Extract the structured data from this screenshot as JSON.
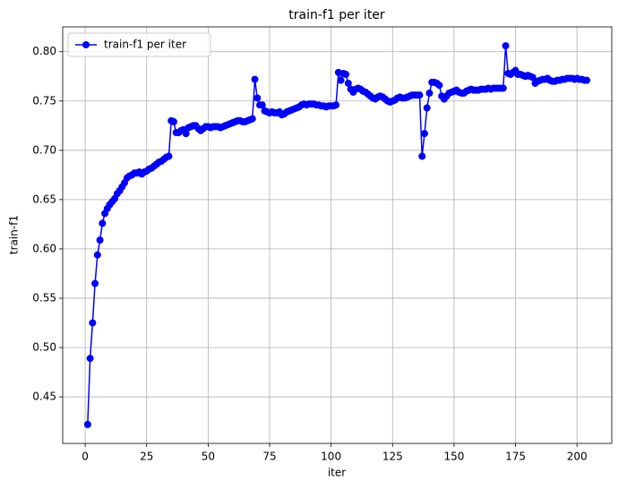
{
  "chart_data": {
    "type": "line",
    "title": "train-f1 per iter",
    "xlabel": "iter",
    "ylabel": "train-f1",
    "x": [
      1,
      2,
      3,
      4,
      5,
      6,
      7,
      8,
      9,
      10,
      11,
      12,
      13,
      14,
      15,
      16,
      17,
      18,
      19,
      20,
      21,
      22,
      23,
      24,
      25,
      26,
      27,
      28,
      29,
      30,
      31,
      32,
      33,
      34,
      35,
      36,
      37,
      38,
      39,
      40,
      41,
      42,
      43,
      44,
      45,
      46,
      47,
      48,
      49,
      50,
      51,
      52,
      53,
      54,
      55,
      56,
      57,
      58,
      59,
      60,
      61,
      62,
      63,
      64,
      65,
      66,
      67,
      68,
      69,
      70,
      71,
      72,
      73,
      74,
      75,
      76,
      77,
      78,
      79,
      80,
      81,
      82,
      83,
      84,
      85,
      86,
      87,
      88,
      89,
      90,
      91,
      92,
      93,
      94,
      95,
      96,
      97,
      98,
      99,
      100,
      101,
      102,
      103,
      104,
      105,
      106,
      107,
      108,
      109,
      110,
      111,
      112,
      113,
      114,
      115,
      116,
      117,
      118,
      119,
      120,
      121,
      122,
      123,
      124,
      125,
      126,
      127,
      128,
      129,
      130,
      131,
      132,
      133,
      134,
      135,
      136,
      137,
      138,
      139,
      140,
      141,
      142,
      143,
      144,
      145,
      146,
      147,
      148,
      149,
      150,
      151,
      152,
      153,
      154,
      155,
      156,
      157,
      158,
      159,
      160,
      161,
      162,
      163,
      164,
      165,
      166,
      167,
      168,
      169,
      170,
      171,
      172,
      173,
      174,
      175,
      176,
      177,
      178,
      179,
      180,
      181,
      182,
      183,
      184,
      185,
      186,
      187,
      188,
      189,
      190,
      191,
      192,
      193,
      194,
      195,
      196,
      197,
      198,
      199,
      200,
      201,
      202,
      203,
      204
    ],
    "series": [
      {
        "name": "train-f1 per iter",
        "color": "#0000ff",
        "values": [
          0.422,
          0.489,
          0.525,
          0.565,
          0.594,
          0.609,
          0.626,
          0.636,
          0.641,
          0.645,
          0.648,
          0.651,
          0.656,
          0.659,
          0.663,
          0.667,
          0.672,
          0.674,
          0.675,
          0.677,
          0.677,
          0.678,
          0.676,
          0.678,
          0.679,
          0.681,
          0.682,
          0.684,
          0.686,
          0.688,
          0.689,
          0.691,
          0.693,
          0.694,
          0.73,
          0.729,
          0.718,
          0.718,
          0.72,
          0.721,
          0.717,
          0.723,
          0.724,
          0.725,
          0.725,
          0.722,
          0.72,
          0.722,
          0.724,
          0.724,
          0.723,
          0.724,
          0.724,
          0.724,
          0.723,
          0.724,
          0.725,
          0.726,
          0.727,
          0.728,
          0.729,
          0.73,
          0.73,
          0.729,
          0.729,
          0.73,
          0.731,
          0.732,
          0.772,
          0.753,
          0.746,
          0.746,
          0.74,
          0.739,
          0.738,
          0.739,
          0.738,
          0.738,
          0.739,
          0.736,
          0.737,
          0.739,
          0.74,
          0.741,
          0.742,
          0.743,
          0.744,
          0.746,
          0.747,
          0.746,
          0.747,
          0.747,
          0.747,
          0.746,
          0.746,
          0.745,
          0.745,
          0.744,
          0.745,
          0.745,
          0.745,
          0.746,
          0.779,
          0.771,
          0.778,
          0.777,
          0.768,
          0.762,
          0.759,
          0.762,
          0.763,
          0.762,
          0.76,
          0.759,
          0.757,
          0.755,
          0.753,
          0.752,
          0.754,
          0.755,
          0.754,
          0.752,
          0.75,
          0.749,
          0.75,
          0.751,
          0.753,
          0.754,
          0.753,
          0.753,
          0.754,
          0.755,
          0.756,
          0.756,
          0.756,
          0.756,
          0.694,
          0.717,
          0.743,
          0.758,
          0.769,
          0.769,
          0.768,
          0.766,
          0.755,
          0.752,
          0.755,
          0.758,
          0.759,
          0.76,
          0.761,
          0.759,
          0.758,
          0.758,
          0.76,
          0.761,
          0.762,
          0.761,
          0.761,
          0.761,
          0.762,
          0.762,
          0.762,
          0.763,
          0.762,
          0.763,
          0.763,
          0.763,
          0.763,
          0.763,
          0.806,
          0.778,
          0.777,
          0.779,
          0.781,
          0.777,
          0.777,
          0.776,
          0.775,
          0.776,
          0.775,
          0.774,
          0.768,
          0.77,
          0.771,
          0.772,
          0.772,
          0.773,
          0.771,
          0.77,
          0.77,
          0.771,
          0.771,
          0.772,
          0.772,
          0.773,
          0.773,
          0.773,
          0.772,
          0.773,
          0.772,
          0.772,
          0.771,
          0.771
        ]
      }
    ],
    "xlim": [
      -9.15,
      214.15
    ],
    "xticks": [
      0,
      25,
      50,
      75,
      100,
      125,
      150,
      175,
      200
    ],
    "ylim": [
      0.4028,
      0.8252
    ],
    "yticks": [
      0.45,
      {
        "value": 0.5,
        "label": "0.50"
      },
      0.55,
      {
        "value": 0.6,
        "label": "0.60"
      },
      0.65,
      {
        "value": 0.7,
        "label": "0.70"
      },
      0.75,
      {
        "value": 0.8,
        "label": "0.80"
      }
    ],
    "grid": true,
    "legend": "upper left"
  }
}
